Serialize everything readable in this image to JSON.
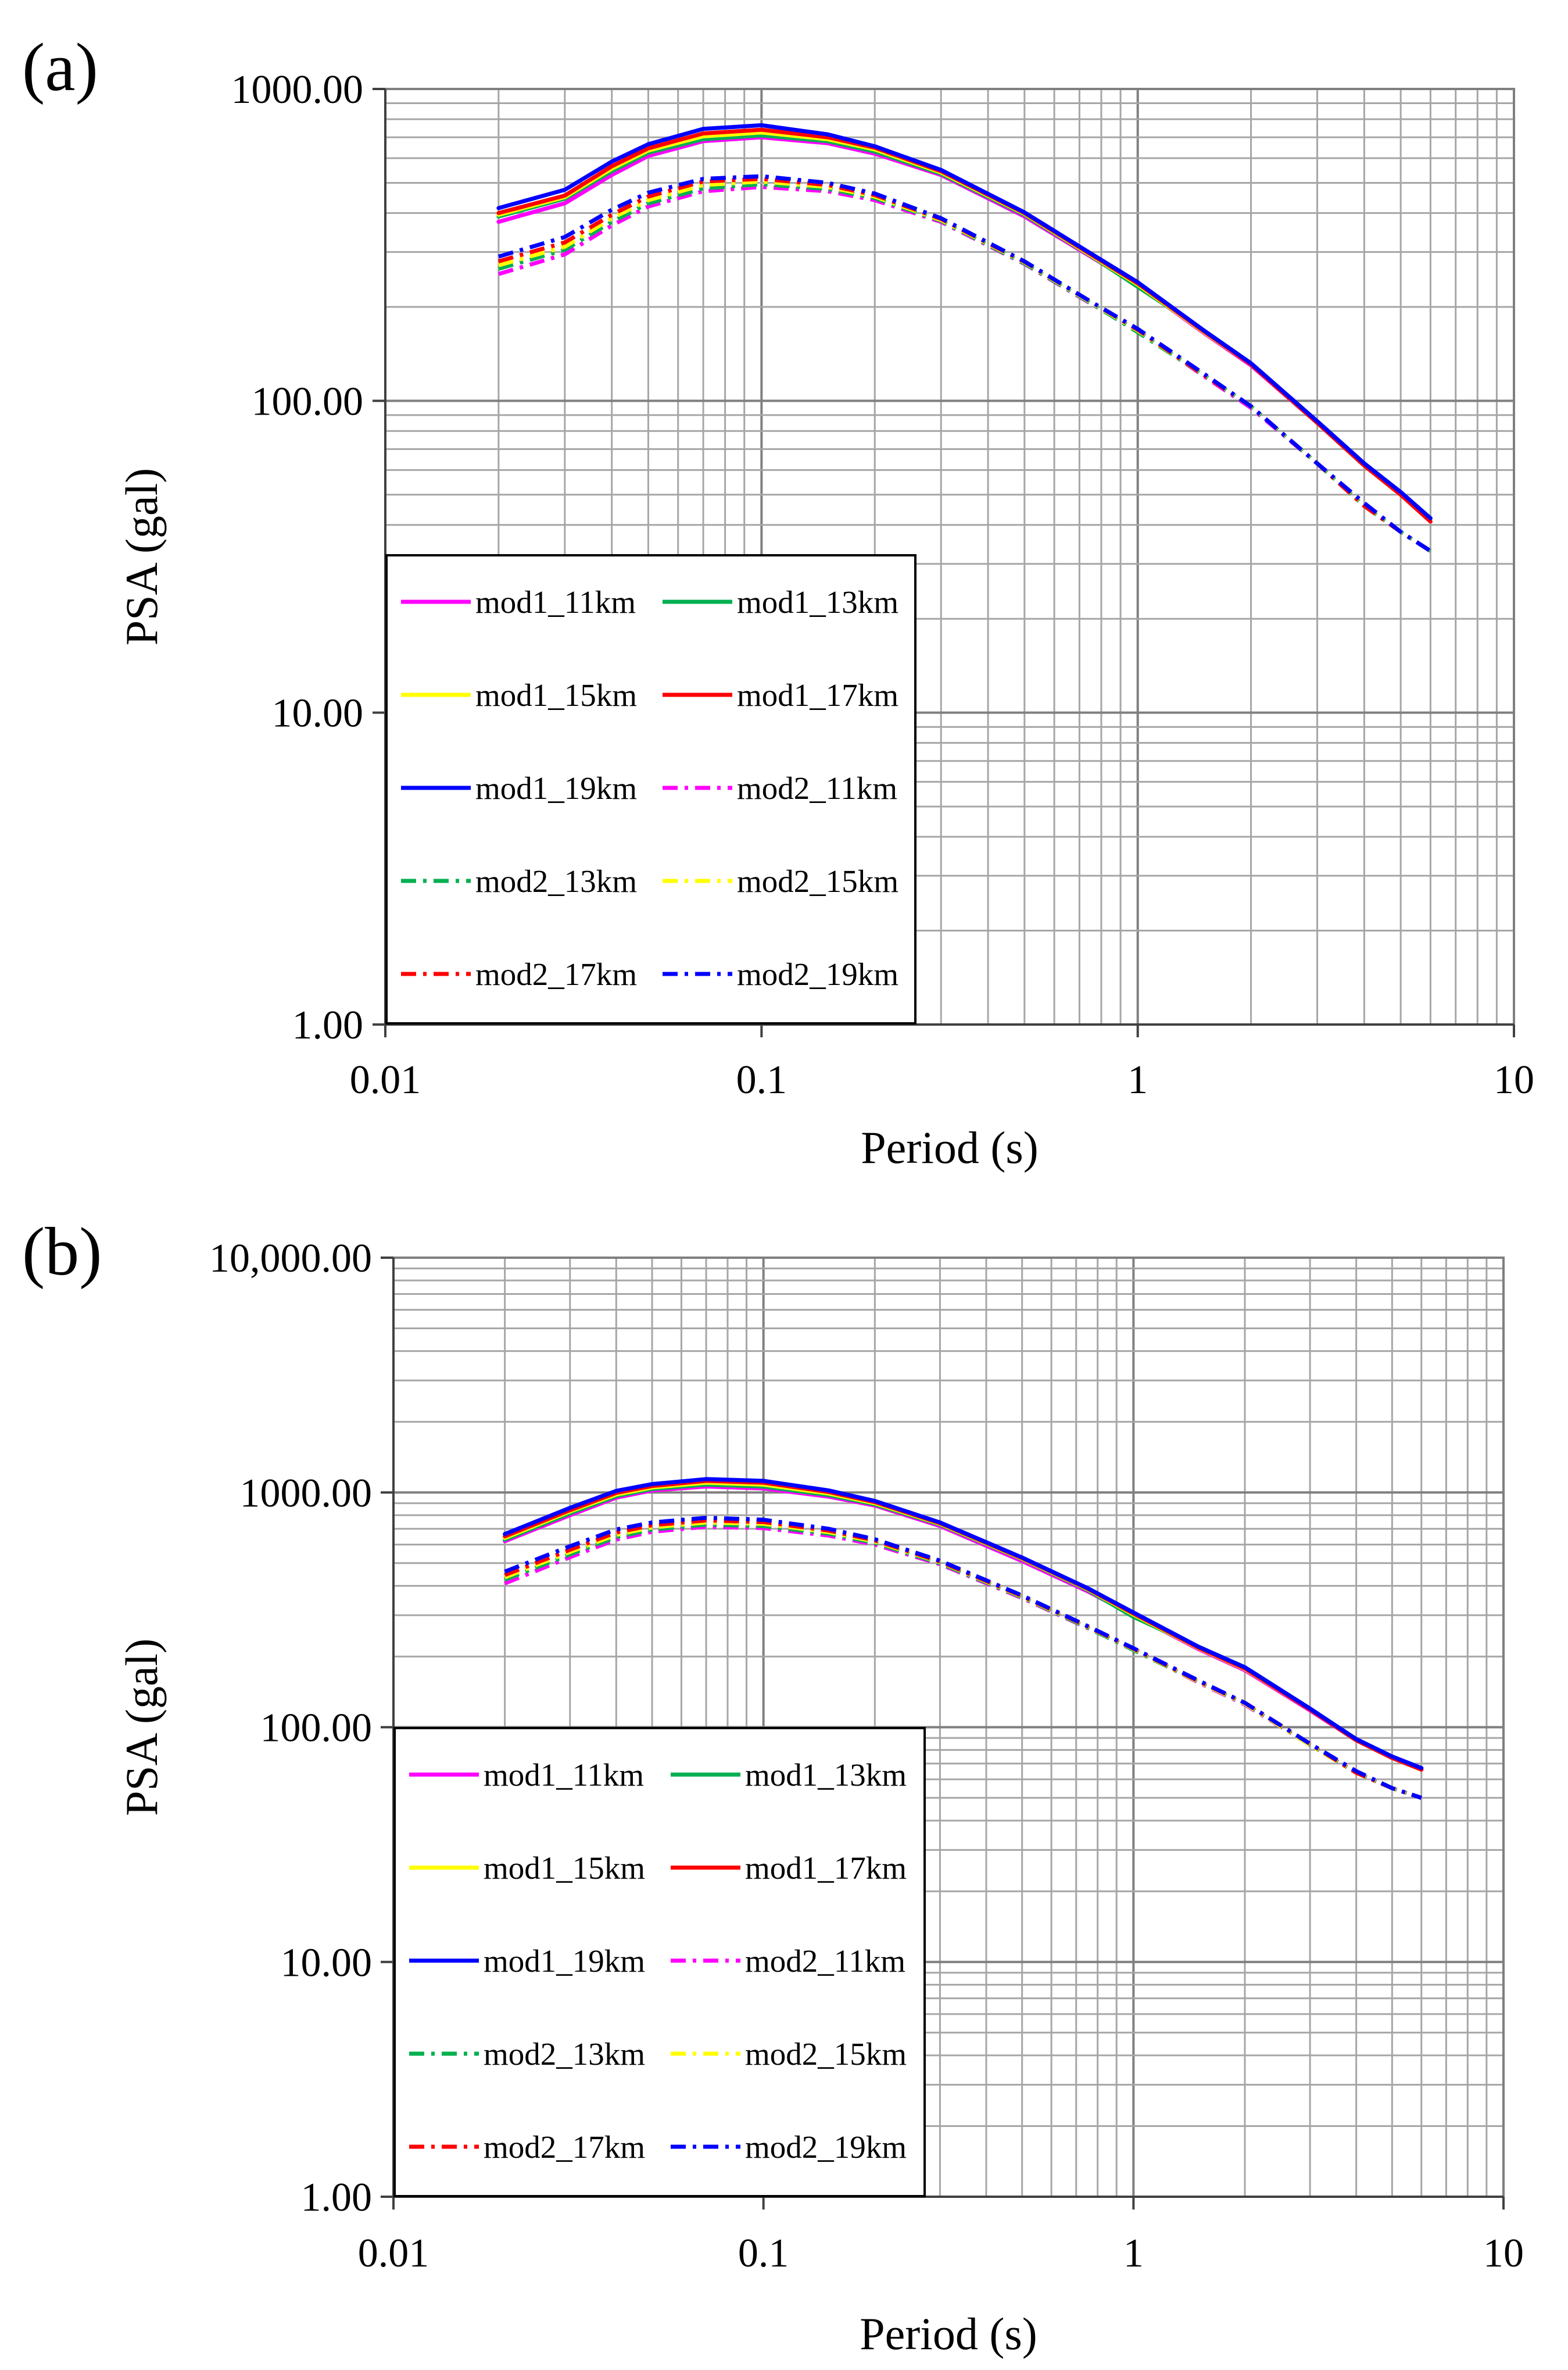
{
  "figure": {
    "panel_labels": [
      "(a)",
      "(b)"
    ]
  },
  "chart_data": [
    {
      "panel": "(a)",
      "type": "line",
      "xscale": "log",
      "yscale": "log",
      "xlim": [
        0.01,
        10
      ],
      "ylim": [
        1,
        1000
      ],
      "xlabel": "Period (s)",
      "ylabel": "PSA (gal)",
      "x_ticks": [
        0.01,
        0.1,
        1,
        10
      ],
      "x_tick_labels": [
        "0.01",
        "0.1",
        "1",
        "10"
      ],
      "y_ticks": [
        1,
        10,
        100,
        1000
      ],
      "y_tick_labels": [
        "1.00",
        "10.00",
        "100.00",
        "1000.00"
      ],
      "grid": true,
      "legend_location": "lower-left",
      "x": [
        0.02,
        0.03,
        0.04,
        0.05,
        0.07,
        0.1,
        0.15,
        0.2,
        0.3,
        0.5,
        0.75,
        1,
        1.5,
        2,
        3,
        4,
        5,
        6
      ],
      "series": [
        {
          "name": "mod1_11km",
          "color": "#ff00ff",
          "style": "solid",
          "values": [
            375,
            430,
            530,
            610,
            680,
            700,
            670,
            620,
            530,
            390,
            290,
            235,
            165,
            130,
            85,
            62,
            50,
            42
          ]
        },
        {
          "name": "mod1_13km",
          "color": "#00b050",
          "style": "solid",
          "values": [
            390,
            445,
            545,
            625,
            690,
            710,
            680,
            630,
            535,
            395,
            292,
            232,
            168,
            132,
            86,
            63,
            51,
            42
          ]
        },
        {
          "name": "mod1_15km",
          "color": "#ffff00",
          "style": "solid",
          "values": [
            395,
            450,
            555,
            635,
            705,
            725,
            690,
            640,
            540,
            398,
            293,
            236,
            166,
            131,
            85,
            62,
            50,
            42
          ]
        },
        {
          "name": "mod1_17km",
          "color": "#ff0000",
          "style": "solid",
          "values": [
            400,
            455,
            565,
            645,
            720,
            740,
            700,
            648,
            545,
            400,
            295,
            238,
            167,
            131,
            85,
            62,
            50,
            41
          ]
        },
        {
          "name": "mod1_19km",
          "color": "#0000ff",
          "style": "solid",
          "values": [
            415,
            475,
            585,
            665,
            745,
            765,
            715,
            655,
            550,
            402,
            297,
            240,
            168,
            132,
            86,
            63,
            51,
            42
          ]
        },
        {
          "name": "mod2_11km",
          "color": "#ff00ff",
          "style": "dash-dot",
          "values": [
            255,
            295,
            365,
            420,
            470,
            485,
            470,
            440,
            375,
            275,
            205,
            168,
            120,
            95,
            63,
            46,
            38,
            33
          ]
        },
        {
          "name": "mod2_13km",
          "color": "#00b050",
          "style": "dash-dot",
          "values": [
            265,
            305,
            375,
            430,
            480,
            495,
            478,
            447,
            378,
            276,
            206,
            166,
            121,
            96,
            63,
            46,
            38,
            33
          ]
        },
        {
          "name": "mod2_15km",
          "color": "#ffff00",
          "style": "dash-dot",
          "values": [
            272,
            312,
            385,
            440,
            492,
            505,
            485,
            452,
            380,
            278,
            207,
            168,
            121,
            96,
            63,
            46,
            38,
            33
          ]
        },
        {
          "name": "mod2_17km",
          "color": "#ff0000",
          "style": "dash-dot",
          "values": [
            280,
            322,
            395,
            452,
            505,
            515,
            492,
            457,
            383,
            279,
            208,
            169,
            121,
            96,
            63,
            46,
            38,
            33
          ]
        },
        {
          "name": "mod2_19km",
          "color": "#0000ff",
          "style": "dash-dot",
          "values": [
            290,
            335,
            410,
            465,
            515,
            525,
            500,
            462,
            385,
            280,
            208,
            170,
            122,
            96,
            63,
            47,
            38,
            33
          ]
        }
      ]
    },
    {
      "panel": "(b)",
      "type": "line",
      "xscale": "log",
      "yscale": "log",
      "xlim": [
        0.01,
        10
      ],
      "ylim": [
        1,
        10000
      ],
      "xlabel": "Period (s)",
      "ylabel": "PSA (gal)",
      "x_ticks": [
        0.01,
        0.1,
        1,
        10
      ],
      "x_tick_labels": [
        "0.01",
        "0.1",
        "1",
        "10"
      ],
      "y_ticks": [
        1,
        10,
        100,
        1000,
        10000
      ],
      "y_tick_labels": [
        "1.00",
        "10.00",
        "100.00",
        "1000.00",
        "10,000.00"
      ],
      "grid": true,
      "legend_location": "lower-left",
      "x": [
        0.02,
        0.03,
        0.04,
        0.05,
        0.07,
        0.1,
        0.15,
        0.2,
        0.3,
        0.5,
        0.75,
        1,
        1.5,
        2,
        3,
        4,
        5,
        6
      ],
      "series": [
        {
          "name": "mod1_11km",
          "color": "#ff00ff",
          "style": "solid",
          "values": [
            620,
            800,
            950,
            1020,
            1060,
            1040,
            960,
            880,
            720,
            510,
            380,
            300,
            215,
            175,
            118,
            88,
            74,
            66
          ]
        },
        {
          "name": "mod1_13km",
          "color": "#00b050",
          "style": "solid",
          "values": [
            630,
            815,
            965,
            1035,
            1080,
            1060,
            975,
            890,
            730,
            520,
            385,
            295,
            220,
            180,
            120,
            89,
            75,
            67
          ]
        },
        {
          "name": "mod1_15km",
          "color": "#ffff00",
          "style": "solid",
          "values": [
            640,
            830,
            980,
            1050,
            1100,
            1080,
            990,
            900,
            735,
            522,
            388,
            302,
            217,
            177,
            119,
            88,
            74,
            66
          ]
        },
        {
          "name": "mod1_17km",
          "color": "#ff0000",
          "style": "solid",
          "values": [
            650,
            840,
            995,
            1065,
            1120,
            1100,
            1005,
            910,
            740,
            525,
            390,
            305,
            218,
            178,
            119,
            88,
            74,
            66
          ]
        },
        {
          "name": "mod1_19km",
          "color": "#0000ff",
          "style": "solid",
          "values": [
            665,
            860,
            1015,
            1085,
            1140,
            1120,
            1020,
            920,
            745,
            528,
            392,
            308,
            220,
            180,
            120,
            89,
            75,
            67
          ]
        },
        {
          "name": "mod2_11km",
          "color": "#ff00ff",
          "style": "dash-dot",
          "values": [
            410,
            530,
            630,
            680,
            715,
            705,
            655,
            600,
            495,
            355,
            265,
            215,
            155,
            125,
            84,
            64,
            55,
            50
          ]
        },
        {
          "name": "mod2_13km",
          "color": "#00b050",
          "style": "dash-dot",
          "values": [
            425,
            545,
            645,
            695,
            730,
            720,
            668,
            610,
            500,
            358,
            266,
            213,
            156,
            126,
            84,
            64,
            55,
            50
          ]
        },
        {
          "name": "mod2_15km",
          "color": "#ffff00",
          "style": "dash-dot",
          "values": [
            435,
            558,
            660,
            710,
            745,
            735,
            678,
            618,
            505,
            360,
            268,
            215,
            156,
            126,
            84,
            64,
            55,
            50
          ]
        },
        {
          "name": "mod2_17km",
          "color": "#ff0000",
          "style": "dash-dot",
          "values": [
            445,
            570,
            675,
            725,
            760,
            748,
            688,
            625,
            508,
            362,
            269,
            216,
            157,
            127,
            85,
            64,
            55,
            50
          ]
        },
        {
          "name": "mod2_19km",
          "color": "#0000ff",
          "style": "dash-dot",
          "values": [
            460,
            590,
            695,
            745,
            780,
            765,
            700,
            632,
            512,
            364,
            270,
            217,
            158,
            127,
            85,
            65,
            55,
            50
          ]
        }
      ]
    }
  ]
}
